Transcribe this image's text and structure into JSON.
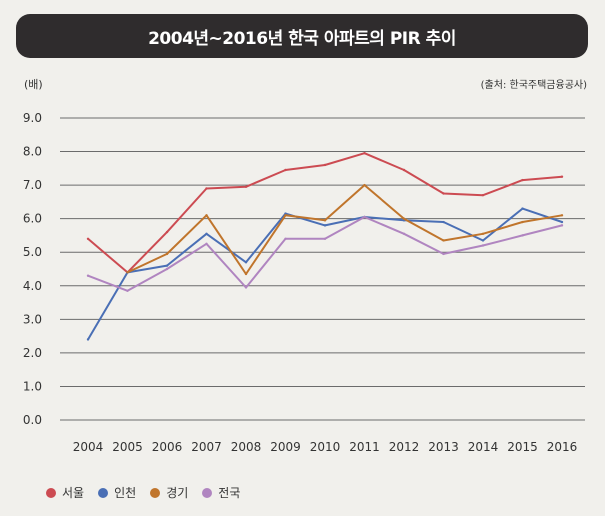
{
  "header": {
    "title": "2004년~2016년 한국 아파트의 PIR 추이"
  },
  "y_unit": "(배)",
  "source": "(출처: 한국주택금융공사)",
  "colors": {
    "title_bg": "#2f2c2d",
    "seoul": "#cc4b52",
    "incheon": "#4a6fb5",
    "gyeonggi": "#c0752c",
    "national": "#b085c0",
    "grid": "#6b6b6b"
  },
  "chart_data": {
    "type": "line",
    "title": "2004년~2016년 한국 아파트의 PIR 추이",
    "ylabel": "(배)",
    "ylim": [
      0,
      9
    ],
    "yticks": [
      "0.0",
      "1.0",
      "2.0",
      "3.0",
      "4.0",
      "5.0",
      "6.0",
      "7.0",
      "8.0",
      "9.0"
    ],
    "categories": [
      "2004",
      "2005",
      "2006",
      "2007",
      "2008",
      "2009",
      "2010",
      "2011",
      "2012",
      "2013",
      "2014",
      "2015",
      "2016"
    ],
    "grid": true,
    "legend_position": "bottom",
    "series": [
      {
        "name": "서울",
        "color": "#cc4b52",
        "values": [
          5.4,
          4.4,
          5.6,
          6.9,
          6.95,
          7.45,
          7.6,
          7.95,
          7.45,
          6.75,
          6.7,
          7.15,
          7.25
        ]
      },
      {
        "name": "인천",
        "color": "#4a6fb5",
        "values": [
          2.4,
          4.4,
          4.6,
          5.55,
          4.7,
          6.15,
          5.8,
          6.05,
          5.95,
          5.9,
          5.35,
          6.3,
          5.9
        ]
      },
      {
        "name": "경기",
        "color": "#c0752c",
        "values": [
          null,
          4.4,
          4.95,
          6.1,
          4.35,
          6.1,
          5.95,
          7.0,
          6.0,
          5.35,
          5.55,
          5.9,
          6.1
        ]
      },
      {
        "name": "전국",
        "color": "#b085c0",
        "values": [
          4.3,
          3.85,
          4.5,
          5.25,
          3.95,
          5.4,
          5.4,
          6.05,
          5.55,
          4.95,
          5.2,
          5.5,
          5.8
        ]
      }
    ]
  }
}
